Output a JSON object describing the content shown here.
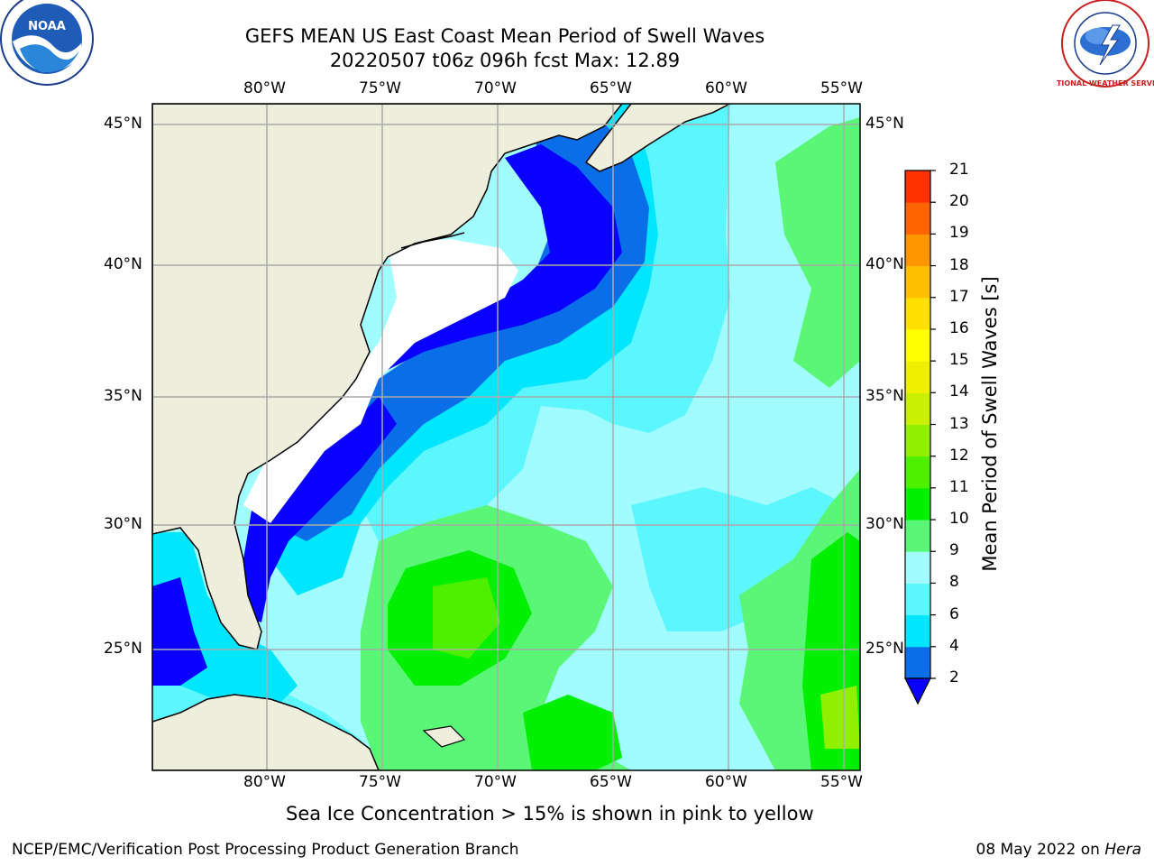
{
  "title": {
    "line1": "GEFS MEAN US East Coast Mean Period of Swell Waves",
    "line2": "20220507 t06z 096h fcst   Max: 12.89"
  },
  "logos": {
    "left": "noaa-logo",
    "right": "national-weather-service-logo",
    "left_text": "NOAA",
    "right_text": "NATIONAL WEATHER SERVICE"
  },
  "lon_labels": [
    "80°W",
    "75°W",
    "70°W",
    "65°W",
    "60°W",
    "55°W"
  ],
  "lat_labels": [
    "45°N",
    "40°N",
    "35°N",
    "30°N",
    "25°N"
  ],
  "colorbar": {
    "label": "Mean Period of Swell Waves [s]",
    "ticks": [
      "2",
      "4",
      "6",
      "8",
      "9",
      "10",
      "11",
      "12",
      "13",
      "14",
      "15",
      "16",
      "17",
      "18",
      "19",
      "20",
      "21"
    ],
    "colors": [
      "#0a6ee8",
      "#00e6ff",
      "#5cf6ff",
      "#a0fcff",
      "#5af676",
      "#00f000",
      "#4ef000",
      "#90f000",
      "#c8f000",
      "#eef000",
      "#ffff00",
      "#ffe000",
      "#ffbe00",
      "#ff9600",
      "#ff6400",
      "#ff3200",
      "#ff0000"
    ],
    "underflow_color": "#0a00ff"
  },
  "map": {
    "land_color": "#eeeedd",
    "max_value": 12.89
  },
  "note": "Sea Ice Concentration > 15% is shown in pink to yellow",
  "footer": {
    "left": "NCEP/EMC/Verification Post Processing Product Generation Branch",
    "date": "08 May 2022 on ",
    "machine": "Hera"
  }
}
